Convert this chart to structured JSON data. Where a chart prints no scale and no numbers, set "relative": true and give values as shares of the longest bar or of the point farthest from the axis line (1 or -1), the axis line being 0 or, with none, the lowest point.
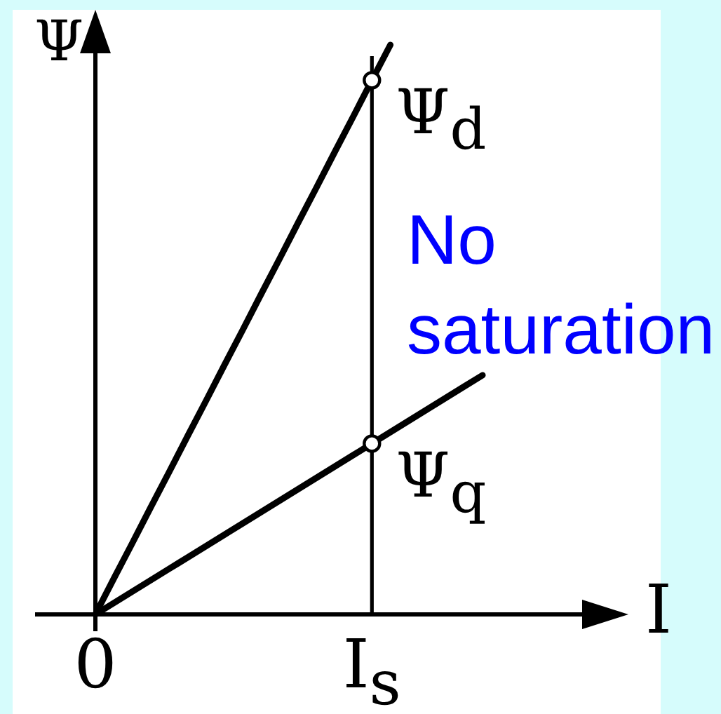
{
  "chart_data": {
    "type": "line",
    "xlabel": "I",
    "ylabel": "Ψ",
    "relative": true,
    "categories": [
      "0",
      null,
      null,
      null,
      null,
      null,
      null,
      null,
      null,
      null,
      null,
      null,
      null,
      null,
      null,
      "I$_{s}$",
      null,
      null,
      null,
      null,
      null,
      null,
      null,
      null,
      null,
      null,
      null,
      null,
      null
    ],
    "series": [
      {
        "color": "#000000",
        "values": [
          0,
          0.063,
          0.125,
          0.188,
          0.25,
          0.313,
          0.375,
          0.438,
          0.5,
          0.563,
          0.625,
          0.688,
          0.75,
          0.813,
          0.875,
          0.938,
          1,
          null,
          null,
          null,
          null,
          null,
          null,
          null,
          null,
          null,
          null,
          null,
          null
        ]
      },
      {
        "color": "#000000",
        "values": [
          0,
          0.02,
          0.04,
          0.06,
          0.08,
          0.1,
          0.12,
          0.14,
          0.16,
          0.18,
          0.2,
          0.22,
          0.24,
          0.26,
          0.28,
          0.3,
          0.32,
          0.34,
          0.36,
          0.38,
          0.4,
          0.42,
          null,
          null,
          null,
          null,
          null,
          null,
          null
        ]
      },
      {
        "type": "scatter",
        "name": "Ψ$_{d}$",
        "color": "#000000",
        "marker": "circle",
        "values": [
          null,
          null,
          null,
          null,
          null,
          null,
          null,
          null,
          null,
          null,
          null,
          null,
          null,
          null,
          null,
          0.938,
          null,
          null,
          null,
          null,
          null,
          null,
          null,
          null,
          null,
          null,
          null,
          null,
          null
        ]
      },
      {
        "type": "scatter",
        "name": "Ψ$_{q}$",
        "color": "#000000",
        "marker": "circle",
        "values": [
          null,
          null,
          null,
          null,
          null,
          null,
          null,
          null,
          null,
          null,
          null,
          null,
          null,
          null,
          null,
          0.3,
          null,
          null,
          null,
          null,
          null,
          null,
          null,
          null,
          null,
          null,
          null,
          null,
          null
        ]
      }
    ],
    "ref_lines": [
      {
        "axis": "x",
        "value": "I$_{s}$",
        "color": "#000000"
      }
    ],
    "annotations": [
      "No saturation"
    ]
  }
}
